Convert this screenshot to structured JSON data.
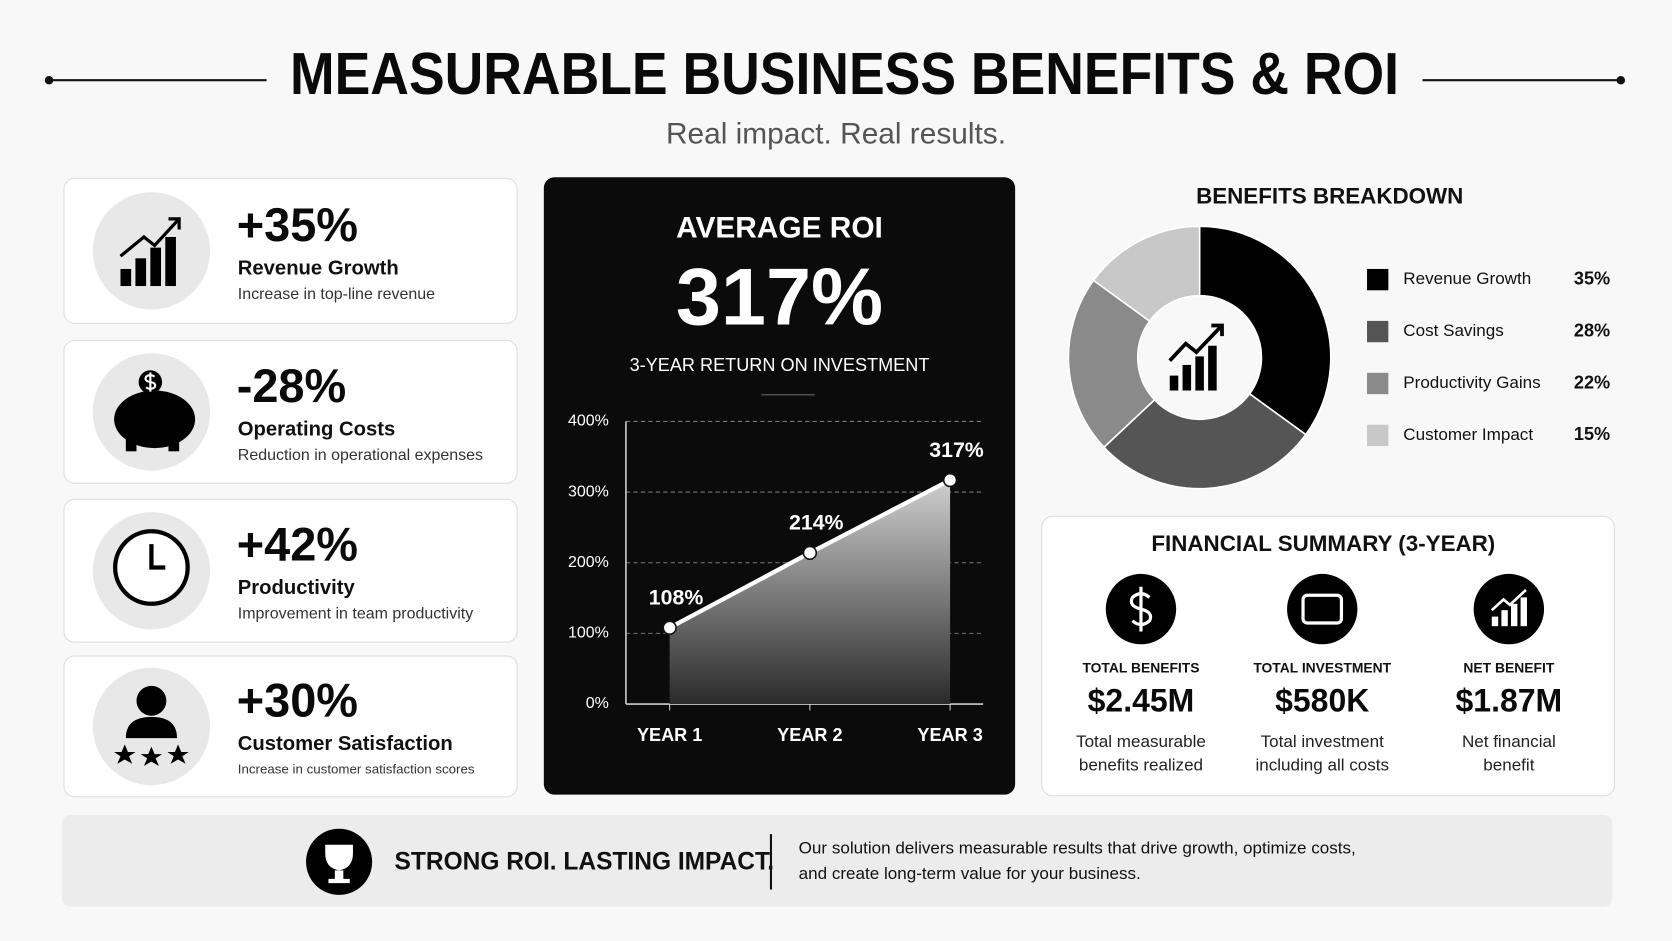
{
  "header": {
    "title": "MEASURABLE BUSINESS BENEFITS & ROI",
    "subtitle": "Real impact. Real results."
  },
  "metrics": [
    {
      "value": "+35%",
      "label": "Revenue Growth",
      "desc": "Increase in top-line revenue"
    },
    {
      "value": "-28%",
      "label": "Operating Costs",
      "desc": "Reduction in operational expenses"
    },
    {
      "value": "+42%",
      "label": "Productivity",
      "desc": "Improvement in team productivity"
    },
    {
      "value": "+30%",
      "label": "Customer Satisfaction",
      "desc": "Increase in customer satisfaction scores"
    }
  ],
  "chart_data": [
    {
      "type": "line",
      "title": "AVERAGE ROI",
      "headline": "317%",
      "subtitle": "3-YEAR RETURN ON INVESTMENT",
      "categories": [
        "YEAR 1",
        "YEAR 2",
        "YEAR 3"
      ],
      "values": [
        108,
        214,
        317
      ],
      "value_labels": [
        "108%",
        "214%",
        "317%"
      ],
      "color": "#ffffff",
      "ylim": [
        0,
        400
      ],
      "yticks": [
        {
          "value": 0,
          "label": "0%"
        },
        {
          "value": 100,
          "label": "100%"
        },
        {
          "value": 200,
          "label": "200%"
        },
        {
          "value": 300,
          "label": "300%"
        },
        {
          "value": 400,
          "label": "400%"
        }
      ],
      "grid": true
    },
    {
      "type": "pie",
      "title": "BENEFITS BREAKDOWN",
      "categories": [
        "Revenue Growth",
        "Cost Savings",
        "Productivity Gains",
        "Customer Impact"
      ],
      "values": [
        35,
        28,
        22,
        15
      ],
      "value_labels": [
        "35%",
        "28%",
        "22%",
        "15%"
      ],
      "colors": [
        "#000000",
        "#555555",
        "#8a8a8a",
        "#c8c8c8"
      ],
      "donut": true
    }
  ],
  "financial_summary": {
    "title": "FINANCIAL SUMMARY (3-YEAR)",
    "items": [
      {
        "label": "TOTAL BENEFITS",
        "value": "$2.45M",
        "desc": [
          "Total measurable",
          "benefits realized"
        ]
      },
      {
        "label": "TOTAL INVESTMENT",
        "value": "$580K",
        "desc": [
          "Total investment",
          "including all costs"
        ]
      },
      {
        "label": "NET BENEFIT",
        "value": "$1.87M",
        "desc": [
          "Net financial",
          "benefit"
        ]
      }
    ]
  },
  "footer": {
    "tagline": "STRONG ROI. LASTING IMPACT.",
    "text": [
      "Our solution delivers measurable results that drive growth, optimize costs,",
      "and create long-term value for your business."
    ]
  }
}
